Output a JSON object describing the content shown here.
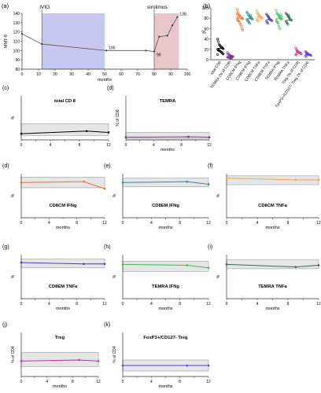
{
  "chart_data": [
    {
      "id": "a",
      "panel_label": "(a)",
      "type": "line",
      "xlabel": "months",
      "ylabel": "MMT-8",
      "xlim": [
        0,
        100
      ],
      "ylim": [
        80,
        140
      ],
      "xticks": [
        0,
        10,
        20,
        30,
        40,
        50,
        60,
        70,
        80,
        90,
        100
      ],
      "yticks": [
        80,
        90,
        100,
        110,
        120,
        130,
        140
      ],
      "shaded_regions": [
        {
          "label": "IVIG",
          "x": [
            12,
            50
          ],
          "color": "#c7c7f2"
        },
        {
          "label": "sirolimus",
          "x": [
            80,
            95
          ],
          "color": "#e8c4cb"
        }
      ],
      "x": [
        0,
        12,
        51,
        75,
        80,
        83,
        88,
        91,
        94
      ],
      "y": [
        118,
        107,
        100,
        100,
        99,
        115,
        116,
        127,
        136
      ],
      "point_labels": [
        {
          "x": 51,
          "y": 100,
          "text": "100"
        },
        {
          "x": 80,
          "y": 99,
          "text": "99"
        },
        {
          "x": 94,
          "y": 136,
          "text": "136"
        }
      ]
    },
    {
      "id": "b",
      "panel_label": "(b)",
      "type": "scatter",
      "ylabel": "%",
      "ylim": [
        0,
        100
      ],
      "yticks": [
        0,
        20,
        40,
        60,
        80,
        100
      ],
      "categories": [
        "total CD8",
        "TEMRA (% of CD8)",
        "CD8CM IFNg",
        "CD8EM IFNg",
        "CD8CM TNFa",
        "CD8EM TNFa",
        "TEMRA IFNg",
        "TEMRA TNFa",
        "Treg (% of CD4)",
        "FoxP3+/CD127- Treg (% of CD4)"
      ],
      "colors": [
        "#000000",
        "#7a2a8c",
        "#f2701e",
        "#2e8a9a",
        "#f5a64a",
        "#4a3fb3",
        "#3bbf4a",
        "#2f6b4e",
        "#c2329a",
        "#5a3fcf"
      ],
      "medians": [
        22,
        6,
        80,
        79,
        82,
        77,
        79,
        76,
        14,
        10
      ],
      "points": [
        [
          40,
          35,
          30,
          28,
          26,
          25,
          24,
          22,
          21,
          20,
          19,
          18,
          17,
          16,
          15,
          14,
          12,
          11,
          10,
          18
        ],
        [
          14,
          11,
          10,
          9,
          8,
          7,
          7,
          6,
          6,
          5,
          5,
          4,
          4,
          3,
          3,
          2
        ],
        [
          97,
          92,
          88,
          86,
          84,
          82,
          80,
          80,
          79,
          78,
          76,
          75,
          73,
          70,
          68,
          65,
          60,
          57,
          88,
          83
        ],
        [
          92,
          90,
          87,
          85,
          83,
          81,
          80,
          79,
          78,
          77,
          76,
          74,
          72,
          70,
          86,
          82
        ],
        [
          95,
          92,
          88,
          86,
          84,
          83,
          82,
          81,
          80,
          78,
          76,
          74,
          88,
          84,
          79
        ],
        [
          88,
          86,
          84,
          82,
          80,
          78,
          77,
          76,
          75,
          74,
          72,
          70,
          83,
          79
        ],
        [
          95,
          90,
          88,
          86,
          84,
          82,
          80,
          79,
          78,
          76,
          74,
          72,
          70,
          65,
          60,
          87,
          83
        ],
        [
          90,
          88,
          86,
          84,
          82,
          80,
          78,
          77,
          76,
          74,
          72,
          70,
          68,
          86,
          81
        ],
        [
          23,
          20,
          18,
          16,
          15,
          14,
          13,
          12,
          11,
          10,
          9,
          17,
          13
        ],
        [
          16,
          14,
          13,
          12,
          11,
          10,
          9,
          9,
          8,
          7,
          6,
          12,
          10
        ]
      ]
    },
    {
      "id": "c",
      "panel_label": "(c)",
      "type": "line",
      "title": "total CD 8",
      "ylabel": "%",
      "xlabel": "",
      "ylim": [
        0,
        100
      ],
      "yticks": [
        0,
        50,
        100
      ],
      "band": [
        10,
        37
      ],
      "x": [
        0,
        9,
        12
      ],
      "y": [
        14,
        20,
        17
      ],
      "color": "#000000"
    },
    {
      "id": "d",
      "panel_label": "(d)",
      "type": "line",
      "title": "TEMRA",
      "ylabel": "% of CD8",
      "xlabel": "months",
      "ylim": [
        0,
        100
      ],
      "yticks": [
        0,
        50,
        100
      ],
      "band": [
        2,
        17
      ],
      "x": [
        0,
        9,
        12
      ],
      "y": [
        6,
        7,
        6
      ],
      "color": "#7a2a8c"
    },
    {
      "id": "e",
      "panel_label": "(d)",
      "type": "line",
      "title": "CD8CM IFNg",
      "ylabel": "%",
      "xlabel": "months",
      "ylim": [
        0,
        100
      ],
      "yticks": [
        0,
        50,
        100
      ],
      "band": [
        68,
        92
      ],
      "x": [
        0,
        9,
        12
      ],
      "y": [
        80,
        82,
        66
      ],
      "color": "#f2701e"
    },
    {
      "id": "f",
      "panel_label": "(e)",
      "type": "line",
      "title": "CD8EM IFNg",
      "ylabel": "%",
      "xlabel": "months",
      "ylim": [
        0,
        100
      ],
      "yticks": [
        0,
        50,
        100
      ],
      "band": [
        70,
        90
      ],
      "x": [
        0,
        9,
        12
      ],
      "y": [
        80,
        82,
        76
      ],
      "color": "#2e8a9a"
    },
    {
      "id": "g",
      "panel_label": "(f)",
      "type": "line",
      "title": "CD8CM TNFa",
      "ylabel": "%",
      "xlabel": "months",
      "ylim": [
        0,
        100
      ],
      "yticks": [
        0,
        50,
        100
      ],
      "band": [
        75,
        95
      ],
      "x": [
        0,
        9,
        12
      ],
      "y": [
        90,
        86,
        86
      ],
      "color": "#f5a64a"
    },
    {
      "id": "h",
      "panel_label": "(g)",
      "type": "line",
      "title": "CD8EM TNFa",
      "ylabel": "%",
      "xlabel": "months",
      "ylim": [
        0,
        100
      ],
      "yticks": [
        0,
        50,
        100
      ],
      "band": [
        70,
        90
      ],
      "x": [
        0,
        9,
        12
      ],
      "y": [
        82,
        79,
        79
      ],
      "color": "#4a3fb3"
    },
    {
      "id": "i",
      "panel_label": "(h)",
      "type": "line",
      "title": "TEMRA IFNg",
      "ylabel": "%",
      "xlabel": "months",
      "ylim": [
        0,
        100
      ],
      "yticks": [
        0,
        50,
        100
      ],
      "band": [
        62,
        85
      ],
      "x": [
        0,
        9,
        12
      ],
      "y": [
        78,
        76,
        70
      ],
      "color": "#3bbf4a"
    },
    {
      "id": "j",
      "panel_label": "(i)",
      "type": "line",
      "title": "TEMRA TNFa",
      "ylabel": "%",
      "xlabel": "months",
      "ylim": [
        0,
        100
      ],
      "yticks": [
        0,
        50,
        100
      ],
      "band": [
        68,
        88
      ],
      "x": [
        0,
        9,
        12
      ],
      "y": [
        78,
        72,
        76
      ],
      "color": "#2f6b4e"
    },
    {
      "id": "k",
      "panel_label": "(j)",
      "type": "line",
      "title": "Treg",
      "ylabel": "% of CD4",
      "xlabel": "months",
      "ylim": [
        0,
        40
      ],
      "yticks": [
        0,
        10,
        20,
        30,
        40
      ],
      "band": [
        9,
        22
      ],
      "x": [
        0,
        9,
        12
      ],
      "y": [
        14,
        15,
        14
      ],
      "color": "#c2329a"
    },
    {
      "id": "l",
      "panel_label": "(k)",
      "type": "line",
      "title": "FoxP3+/CD127- Treg",
      "ylabel": "% of CD4",
      "xlabel": "months",
      "ylim": [
        0,
        40
      ],
      "yticks": [
        0,
        10,
        20,
        30,
        40
      ],
      "band": [
        5,
        15
      ],
      "x": [
        0,
        9,
        12
      ],
      "y": [
        10,
        10,
        10
      ],
      "color": "#5a3fcf"
    }
  ]
}
